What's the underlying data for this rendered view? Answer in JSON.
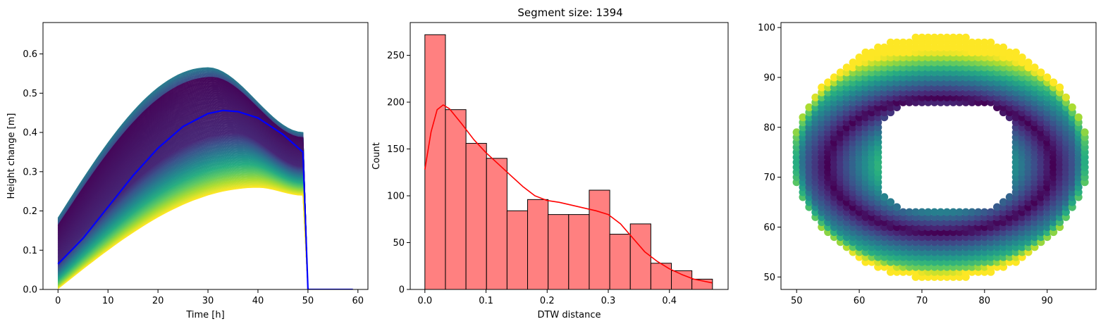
{
  "figure": {
    "suptitle": "Segment size: 1394"
  },
  "chart_data": [
    {
      "type": "line",
      "title": "",
      "xlabel": "Time [h]",
      "ylabel": "Height change [m]",
      "xlim": [
        -3,
        62
      ],
      "ylim": [
        0,
        0.68
      ],
      "xticks": [
        "0",
        "10",
        "20",
        "30",
        "40",
        "50",
        "60"
      ],
      "yticks": [
        "0.0",
        "0.1",
        "0.2",
        "0.3",
        "0.4",
        "0.5",
        "0.6"
      ],
      "grid": false,
      "colormap": "viridis",
      "ensemble": {
        "count": 200,
        "x_range": [
          0,
          59
        ],
        "drop_time": 49,
        "zero_time": 50,
        "start_range": [
          0.0,
          0.18
        ],
        "peak_range": [
          0.26,
          0.565
        ],
        "peak_time_range": [
          30,
          40
        ],
        "end_range": [
          0.24,
          0.4
        ]
      },
      "mean_series": {
        "color": "#0000ff",
        "x": [
          0,
          5,
          10,
          15,
          20,
          25,
          30,
          33,
          36,
          40,
          45,
          49,
          50,
          59
        ],
        "y": [
          0.065,
          0.13,
          0.21,
          0.29,
          0.36,
          0.415,
          0.448,
          0.456,
          0.453,
          0.437,
          0.395,
          0.35,
          0.0,
          0.0
        ]
      }
    },
    {
      "type": "bar",
      "title": "",
      "xlabel": "DTW distance",
      "ylabel": "Count",
      "xlim": [
        -0.024,
        0.496
      ],
      "ylim": [
        0,
        285
      ],
      "xticks": [
        "0.0",
        "0.1",
        "0.2",
        "0.3",
        "0.4"
      ],
      "yticks": [
        "0",
        "50",
        "100",
        "150",
        "200",
        "250"
      ],
      "grid": false,
      "bar_color": "#ff8080",
      "edge_color": "#000000",
      "bin_edges": [
        0.0,
        0.0336,
        0.0672,
        0.1008,
        0.1344,
        0.168,
        0.2016,
        0.2352,
        0.2688,
        0.3024,
        0.336,
        0.3696,
        0.4032,
        0.4368,
        0.4704
      ],
      "values": [
        272,
        192,
        156,
        140,
        84,
        96,
        80,
        80,
        106,
        59,
        70,
        28,
        20,
        11
      ],
      "kde": {
        "color": "#ff0000",
        "x": [
          0.0,
          0.01,
          0.02,
          0.03,
          0.04,
          0.06,
          0.08,
          0.1,
          0.12,
          0.14,
          0.16,
          0.18,
          0.2,
          0.22,
          0.24,
          0.26,
          0.28,
          0.3,
          0.32,
          0.34,
          0.36,
          0.38,
          0.4,
          0.42,
          0.44,
          0.47
        ],
        "y": [
          128,
          168,
          192,
          197,
          193,
          177,
          160,
          146,
          134,
          122,
          110,
          100,
          95,
          93,
          90,
          87,
          84,
          80,
          70,
          55,
          40,
          30,
          22,
          16,
          11,
          7
        ]
      }
    },
    {
      "type": "scatter",
      "title": "",
      "xlabel": "",
      "ylabel": "",
      "xlim": [
        47.5,
        97.8
      ],
      "ylim": [
        47.5,
        101
      ],
      "xticks": [
        "50",
        "60",
        "70",
        "80",
        "90"
      ],
      "yticks": [
        "50",
        "60",
        "70",
        "80",
        "90",
        "100"
      ],
      "grid": false,
      "colormap": "viridis",
      "grid_points": {
        "step": 1,
        "x_range": [
          49,
          96
        ],
        "y_range": [
          49,
          98
        ],
        "center": [
          73.0,
          74.0
        ],
        "outer_shape": "ellipse",
        "outer_radii": [
          23.5,
          24.5
        ],
        "hole_x": [
          64,
          84
        ],
        "hole_y": [
          64,
          84
        ],
        "hole_corner_cut": 3,
        "dense_ring_center": [
          73.0,
          72.5
        ]
      }
    }
  ]
}
